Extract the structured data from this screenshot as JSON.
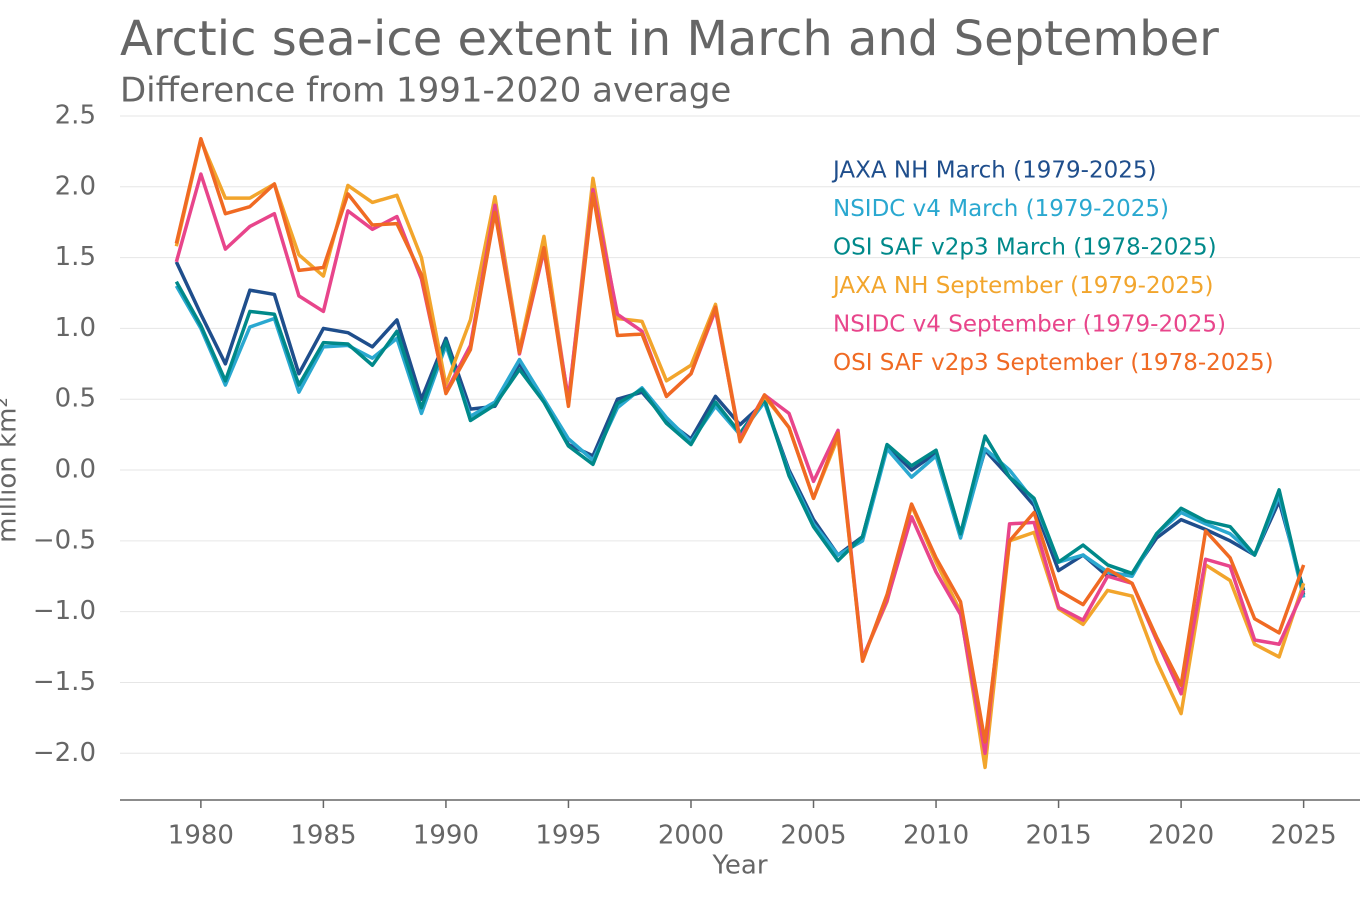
{
  "chart_data": {
    "type": "line",
    "title": "Arctic sea-ice extent in March and September",
    "subtitle": "Difference from 1991-2020 average",
    "x_label": "Year",
    "y_label": "million km²",
    "x": [
      1979,
      1980,
      1981,
      1982,
      1983,
      1984,
      1985,
      1986,
      1987,
      1988,
      1989,
      1990,
      1991,
      1992,
      1993,
      1994,
      1995,
      1996,
      1997,
      1998,
      1999,
      2000,
      2001,
      2002,
      2003,
      2004,
      2005,
      2006,
      2007,
      2008,
      2009,
      2010,
      2011,
      2012,
      2013,
      2014,
      2015,
      2016,
      2017,
      2018,
      2019,
      2020,
      2021,
      2022,
      2023,
      2024,
      2025
    ],
    "series": [
      {
        "name": "JAXA NH March (1979-2025)",
        "color": "#1f4e8c",
        "values": [
          1.47,
          1.1,
          0.75,
          1.27,
          1.24,
          0.68,
          1.0,
          0.97,
          0.87,
          1.06,
          0.5,
          0.93,
          0.43,
          0.45,
          0.75,
          0.48,
          0.18,
          0.1,
          0.5,
          0.55,
          0.35,
          0.22,
          0.52,
          0.32,
          0.48,
          0.0,
          -0.35,
          -0.6,
          -0.47,
          0.17,
          0.0,
          0.12,
          -0.45,
          0.14,
          -0.05,
          -0.25,
          -0.71,
          -0.6,
          -0.75,
          -0.73,
          -0.48,
          -0.35,
          -0.42,
          -0.5,
          -0.6,
          -0.22,
          -0.85
        ]
      },
      {
        "name": "NSIDC v4 March (1979-2025)",
        "color": "#2aa8d0",
        "values": [
          1.3,
          1.0,
          0.6,
          1.01,
          1.07,
          0.55,
          0.87,
          0.88,
          0.79,
          0.93,
          0.4,
          0.88,
          0.38,
          0.48,
          0.78,
          0.5,
          0.22,
          0.07,
          0.44,
          0.58,
          0.37,
          0.2,
          0.45,
          0.25,
          0.48,
          -0.02,
          -0.38,
          -0.6,
          -0.5,
          0.15,
          -0.05,
          0.1,
          -0.48,
          0.15,
          0.0,
          -0.22,
          -0.65,
          -0.6,
          -0.72,
          -0.75,
          -0.45,
          -0.3,
          -0.38,
          -0.45,
          -0.6,
          -0.18,
          -0.9
        ]
      },
      {
        "name": "OSI SAF v2p3 March (1978-2025)",
        "color": "#00898a",
        "values": [
          1.33,
          1.02,
          0.63,
          1.12,
          1.1,
          0.6,
          0.9,
          0.89,
          0.74,
          0.98,
          0.44,
          0.91,
          0.35,
          0.46,
          0.71,
          0.48,
          0.17,
          0.04,
          0.47,
          0.57,
          0.33,
          0.18,
          0.48,
          0.26,
          0.5,
          -0.04,
          -0.4,
          -0.64,
          -0.47,
          0.18,
          0.03,
          0.14,
          -0.45,
          0.24,
          -0.05,
          -0.2,
          -0.65,
          -0.53,
          -0.67,
          -0.73,
          -0.45,
          -0.27,
          -0.36,
          -0.4,
          -0.6,
          -0.14,
          -0.88
        ]
      },
      {
        "name": "JAXA NH September (1979-2025)",
        "color": "#f2a52c",
        "values": [
          1.58,
          2.33,
          1.92,
          1.92,
          2.02,
          1.52,
          1.37,
          2.01,
          1.89,
          1.94,
          1.5,
          0.6,
          1.06,
          1.93,
          0.85,
          1.65,
          0.48,
          2.06,
          1.07,
          1.05,
          0.63,
          0.74,
          1.17,
          0.22,
          0.52,
          0.3,
          -0.2,
          0.23,
          -1.33,
          -0.93,
          -0.25,
          -0.65,
          -1.0,
          -2.1,
          -0.5,
          -0.44,
          -0.98,
          -1.09,
          -0.85,
          -0.89,
          -1.35,
          -1.72,
          -0.67,
          -0.78,
          -1.23,
          -1.32,
          -0.8
        ]
      },
      {
        "name": "NSIDC v4 September (1979-2025)",
        "color": "#e8458b",
        "values": [
          1.47,
          2.09,
          1.56,
          1.72,
          1.81,
          1.23,
          1.12,
          1.83,
          1.7,
          1.79,
          1.35,
          0.55,
          0.88,
          1.87,
          0.82,
          1.55,
          0.5,
          1.98,
          1.1,
          0.98,
          0.52,
          0.68,
          1.13,
          0.22,
          0.53,
          0.4,
          -0.08,
          0.28,
          -1.33,
          -0.92,
          -0.33,
          -0.72,
          -1.02,
          -2.0,
          -0.38,
          -0.37,
          -0.97,
          -1.06,
          -0.75,
          -0.8,
          -1.2,
          -1.58,
          -0.63,
          -0.68,
          -1.2,
          -1.23,
          -0.85
        ]
      },
      {
        "name": "OSI SAF v2p3 September (1978-2025)",
        "color": "#f06a23",
        "values": [
          1.6,
          2.34,
          1.81,
          1.86,
          2.02,
          1.41,
          1.43,
          1.95,
          1.73,
          1.74,
          1.38,
          0.54,
          0.85,
          1.82,
          0.83,
          1.57,
          0.45,
          1.95,
          0.95,
          0.96,
          0.52,
          0.68,
          1.15,
          0.2,
          0.53,
          0.3,
          -0.2,
          0.26,
          -1.35,
          -0.88,
          -0.24,
          -0.62,
          -0.93,
          -1.92,
          -0.5,
          -0.3,
          -0.85,
          -0.95,
          -0.7,
          -0.8,
          -1.18,
          -1.52,
          -0.43,
          -0.62,
          -1.05,
          -1.15,
          -0.67
        ]
      }
    ],
    "xlim": [
      1976.7,
      2027.3
    ],
    "xticks": [
      1980,
      1985,
      1990,
      1995,
      2000,
      2005,
      2010,
      2015,
      2020,
      2025
    ],
    "ylim": [
      -2.33,
      2.5
    ],
    "yticks": [
      2.5,
      {
        "value": 2,
        "label": "2.0"
      },
      1.5,
      {
        "value": 1,
        "label": "1.0"
      },
      0.5,
      {
        "value": 0,
        "label": "0.0"
      },
      {
        "value": -0.5,
        "label": "−0.5"
      },
      {
        "value": -1,
        "label": "−1.0"
      },
      {
        "value": -1.5,
        "label": "−1.5"
      },
      {
        "value": -2,
        "label": "−2.0"
      }
    ],
    "grid": true
  }
}
